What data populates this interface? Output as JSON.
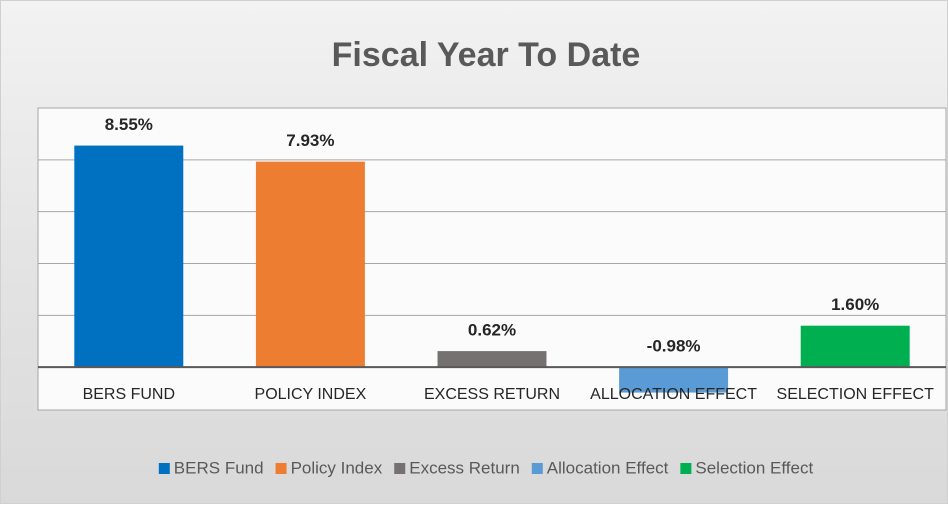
{
  "chart_data": {
    "type": "bar",
    "title": "Fiscal Year To Date",
    "categories": [
      "BERS FUND",
      "POLICY INDEX",
      "EXCESS RETURN",
      "ALLOCATION EFFECT",
      "SELECTION EFFECT"
    ],
    "values": [
      8.55,
      7.93,
      0.62,
      -0.98,
      1.6
    ],
    "value_labels": [
      "8.55%",
      "7.93%",
      "0.62%",
      "-0.98%",
      "1.60%"
    ],
    "colors": [
      "#0070c0",
      "#ed7d31",
      "#767171",
      "#5b9bd5",
      "#00b050"
    ],
    "legend": [
      "BERS Fund",
      "Policy Index",
      "Excess Return",
      "Allocation Effect",
      "Selection Effect"
    ],
    "ylim": [
      -2,
      10
    ],
    "yticks": [
      -2,
      0,
      2,
      4,
      6,
      8,
      10
    ],
    "grid": true,
    "legend_position": "bottom"
  }
}
